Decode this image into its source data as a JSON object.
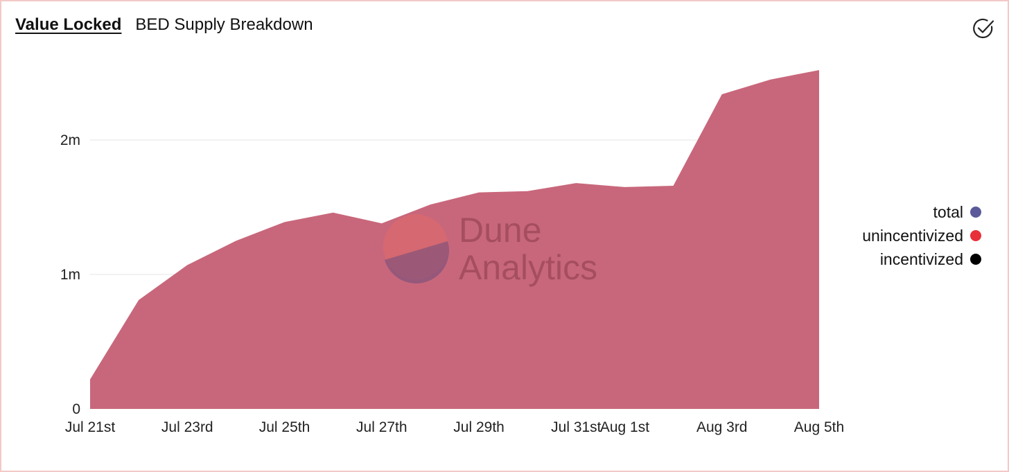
{
  "tabs": [
    {
      "label": "Value Locked",
      "active": true
    },
    {
      "label": "BED Supply Breakdown",
      "active": false
    }
  ],
  "icons": {
    "confirm": "check-circle-icon"
  },
  "watermark": {
    "line1": "Dune",
    "line2": "Analytics"
  },
  "colors": {
    "area": "#c8677b",
    "total": "#5a5a9a",
    "unincentivized": "#e8303a",
    "incentivized": "#000000",
    "grid": "#e6e6e6"
  },
  "legend": [
    {
      "name": "total",
      "color": "#5a5a9a"
    },
    {
      "name": "unincentivized",
      "color": "#e8303a"
    },
    {
      "name": "incentivized",
      "color": "#000000"
    }
  ],
  "chart_data": {
    "type": "area",
    "title": "",
    "xlabel": "",
    "ylabel": "",
    "ylim": [
      0,
      2500000
    ],
    "yticks": [
      {
        "value": 0,
        "label": "0"
      },
      {
        "value": 1000000,
        "label": "1m"
      },
      {
        "value": 2000000,
        "label": "2m"
      }
    ],
    "xticks": [
      {
        "x": "2021-07-21",
        "label": "Jul 21st"
      },
      {
        "x": "2021-07-23",
        "label": "Jul 23rd"
      },
      {
        "x": "2021-07-25",
        "label": "Jul 25th"
      },
      {
        "x": "2021-07-27",
        "label": "Jul 27th"
      },
      {
        "x": "2021-07-29",
        "label": "Jul 29th"
      },
      {
        "x": "2021-07-31",
        "label": "Jul 31st"
      },
      {
        "x": "2021-08-01",
        "label": "Aug 1st"
      },
      {
        "x": "2021-08-03",
        "label": "Aug 3rd"
      },
      {
        "x": "2021-08-05",
        "label": "Aug 5th"
      }
    ],
    "x": [
      "2021-07-21",
      "2021-07-22",
      "2021-07-23",
      "2021-07-24",
      "2021-07-25",
      "2021-07-26",
      "2021-07-27",
      "2021-07-28",
      "2021-07-29",
      "2021-07-30",
      "2021-07-31",
      "2021-08-01",
      "2021-08-02",
      "2021-08-03",
      "2021-08-04",
      "2021-08-05"
    ],
    "series": [
      {
        "name": "total",
        "values": [
          220000,
          810000,
          1070000,
          1250000,
          1390000,
          1460000,
          1380000,
          1520000,
          1610000,
          1620000,
          1680000,
          1650000,
          1660000,
          2340000,
          2450000,
          2520000
        ]
      }
    ],
    "grid": true,
    "legend_position": "right"
  }
}
